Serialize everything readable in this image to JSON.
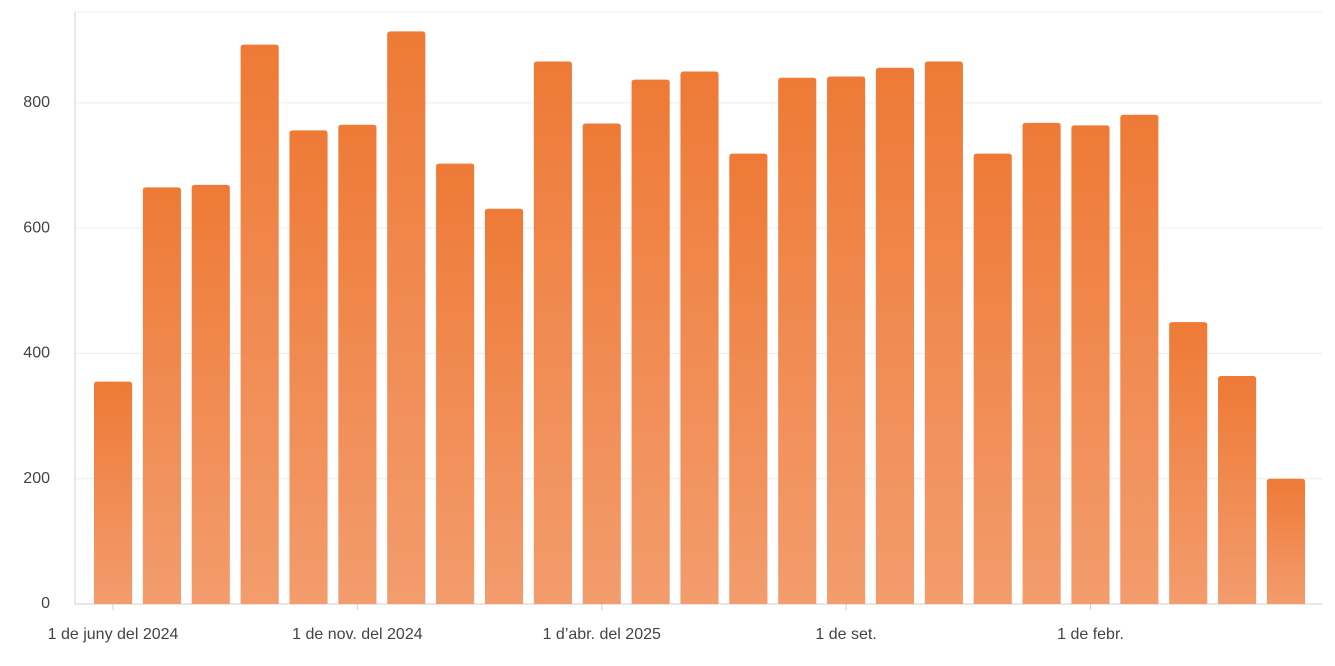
{
  "chart_data": {
    "type": "bar",
    "categories": [
      "1 de juny del 2024",
      null,
      null,
      null,
      null,
      "1 de nov. del 2024",
      null,
      null,
      null,
      null,
      "1 d’abr. del 2025",
      null,
      null,
      null,
      null,
      "1 de set.",
      null,
      null,
      null,
      null,
      "1 de febr.",
      null,
      null,
      null,
      null
    ],
    "values": [
      355,
      665,
      669,
      893,
      756,
      765,
      914,
      703,
      631,
      866,
      767,
      837,
      850,
      719,
      840,
      842,
      856,
      866,
      719,
      768,
      764,
      781,
      450,
      364,
      200
    ],
    "color": "#ee7a36",
    "ylim": [
      0,
      945
    ],
    "yticks": [
      0,
      200,
      400,
      600,
      800
    ],
    "grid": true
  }
}
